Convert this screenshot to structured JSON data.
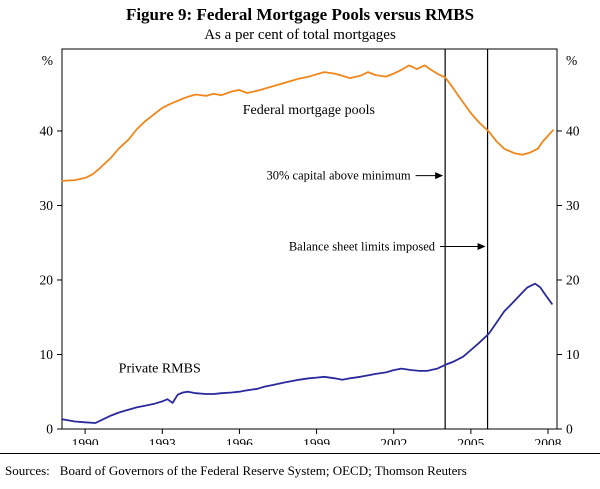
{
  "title": "Figure 9: Federal Mortgage Pools versus RMBS",
  "subtitle": "As a per cent of total mortgages",
  "sources_label": "Sources:",
  "sources_text": "Board of Governors of the Federal Reserve System; OECD; Thomson Reuters",
  "chart_data": {
    "type": "line",
    "title": "Figure 9: Federal Mortgage Pools versus RMBS",
    "subtitle": "As a per cent of total mortgages",
    "ylabel_left": "%",
    "ylabel_right": "%",
    "xlim": [
      1989.1,
      2008.35
    ],
    "ylim": [
      0,
      51
    ],
    "yticks": [
      0,
      10,
      20,
      30,
      40
    ],
    "xticks": [
      1990,
      1993,
      1996,
      1999,
      2002,
      2005,
      2008
    ],
    "grid": false,
    "frame": true,
    "series": [
      {
        "name": "Federal mortgage pools",
        "color": "#f1861b",
        "label_pos": [
          1998.7,
          42.3
        ],
        "points": [
          [
            1989.1,
            33.3
          ],
          [
            1989.6,
            33.4
          ],
          [
            1990.0,
            33.7
          ],
          [
            1990.3,
            34.2
          ],
          [
            1990.6,
            35.1
          ],
          [
            1991.0,
            36.4
          ],
          [
            1991.3,
            37.6
          ],
          [
            1991.7,
            38.9
          ],
          [
            1992.0,
            40.2
          ],
          [
            1992.3,
            41.2
          ],
          [
            1992.7,
            42.3
          ],
          [
            1993.0,
            43.1
          ],
          [
            1993.3,
            43.6
          ],
          [
            1993.7,
            44.2
          ],
          [
            1994.0,
            44.6
          ],
          [
            1994.3,
            44.9
          ],
          [
            1994.7,
            44.7
          ],
          [
            1995.0,
            45.0
          ],
          [
            1995.3,
            44.8
          ],
          [
            1995.7,
            45.3
          ],
          [
            1996.0,
            45.5
          ],
          [
            1996.3,
            45.1
          ],
          [
            1996.7,
            45.4
          ],
          [
            1997.0,
            45.7
          ],
          [
            1997.3,
            46.0
          ],
          [
            1997.7,
            46.4
          ],
          [
            1998.0,
            46.7
          ],
          [
            1998.3,
            47.0
          ],
          [
            1998.7,
            47.3
          ],
          [
            1999.0,
            47.6
          ],
          [
            1999.3,
            47.9
          ],
          [
            1999.7,
            47.7
          ],
          [
            2000.0,
            47.4
          ],
          [
            2000.3,
            47.1
          ],
          [
            2000.7,
            47.4
          ],
          [
            2001.0,
            47.9
          ],
          [
            2001.3,
            47.5
          ],
          [
            2001.7,
            47.3
          ],
          [
            2002.0,
            47.7
          ],
          [
            2002.3,
            48.2
          ],
          [
            2002.6,
            48.8
          ],
          [
            2002.9,
            48.3
          ],
          [
            2003.2,
            48.8
          ],
          [
            2003.5,
            48.1
          ],
          [
            2003.8,
            47.5
          ],
          [
            2004.0,
            47.2
          ],
          [
            2004.3,
            45.8
          ],
          [
            2004.6,
            44.3
          ],
          [
            2005.0,
            42.4
          ],
          [
            2005.3,
            41.2
          ],
          [
            2005.7,
            39.9
          ],
          [
            2006.0,
            38.6
          ],
          [
            2006.3,
            37.6
          ],
          [
            2006.7,
            37.0
          ],
          [
            2007.0,
            36.8
          ],
          [
            2007.3,
            37.1
          ],
          [
            2007.6,
            37.6
          ],
          [
            2007.8,
            38.6
          ],
          [
            2008.2,
            40.1
          ]
        ]
      },
      {
        "name": "Private RMBS",
        "color": "#2a2a9c",
        "label_pos": [
          1992.9,
          7.6
        ],
        "points": [
          [
            1989.1,
            1.3
          ],
          [
            1989.6,
            1.0
          ],
          [
            1990.0,
            0.9
          ],
          [
            1990.4,
            0.8
          ],
          [
            1990.7,
            1.3
          ],
          [
            1991.0,
            1.8
          ],
          [
            1991.3,
            2.2
          ],
          [
            1991.7,
            2.6
          ],
          [
            1992.0,
            2.9
          ],
          [
            1992.3,
            3.1
          ],
          [
            1992.7,
            3.4
          ],
          [
            1993.0,
            3.7
          ],
          [
            1993.2,
            4.0
          ],
          [
            1993.4,
            3.5
          ],
          [
            1993.6,
            4.6
          ],
          [
            1993.8,
            4.9
          ],
          [
            1994.0,
            5.0
          ],
          [
            1994.3,
            4.8
          ],
          [
            1994.7,
            4.7
          ],
          [
            1995.0,
            4.7
          ],
          [
            1995.3,
            4.8
          ],
          [
            1995.7,
            4.9
          ],
          [
            1996.0,
            5.0
          ],
          [
            1996.3,
            5.2
          ],
          [
            1996.7,
            5.4
          ],
          [
            1997.0,
            5.7
          ],
          [
            1997.3,
            5.9
          ],
          [
            1997.7,
            6.2
          ],
          [
            1998.0,
            6.4
          ],
          [
            1998.3,
            6.6
          ],
          [
            1998.7,
            6.8
          ],
          [
            1999.0,
            6.9
          ],
          [
            1999.3,
            7.0
          ],
          [
            1999.7,
            6.8
          ],
          [
            2000.0,
            6.6
          ],
          [
            2000.3,
            6.8
          ],
          [
            2000.7,
            7.0
          ],
          [
            2001.0,
            7.2
          ],
          [
            2001.3,
            7.4
          ],
          [
            2001.7,
            7.6
          ],
          [
            2002.0,
            7.9
          ],
          [
            2002.3,
            8.1
          ],
          [
            2002.7,
            7.9
          ],
          [
            2003.0,
            7.8
          ],
          [
            2003.3,
            7.8
          ],
          [
            2003.7,
            8.1
          ],
          [
            2004.0,
            8.6
          ],
          [
            2004.3,
            9.0
          ],
          [
            2004.7,
            9.7
          ],
          [
            2005.0,
            10.6
          ],
          [
            2005.3,
            11.5
          ],
          [
            2005.7,
            12.8
          ],
          [
            2006.0,
            14.3
          ],
          [
            2006.3,
            15.8
          ],
          [
            2006.7,
            17.2
          ],
          [
            2007.0,
            18.3
          ],
          [
            2007.2,
            19.0
          ],
          [
            2007.5,
            19.5
          ],
          [
            2007.7,
            19.0
          ],
          [
            2007.9,
            18.0
          ],
          [
            2008.15,
            16.8
          ]
        ]
      }
    ],
    "vlines": [
      {
        "x": 2004.0
      },
      {
        "x": 2005.65
      }
    ],
    "annotations": [
      {
        "text": "30% capital above minimum",
        "y": 34.0,
        "arrow_start_x": 2002.85,
        "target_x": 2004.0
      },
      {
        "text": "Balance sheet limits imposed",
        "y": 24.5,
        "arrow_start_x": 2003.8,
        "target_x": 2005.65
      }
    ]
  }
}
